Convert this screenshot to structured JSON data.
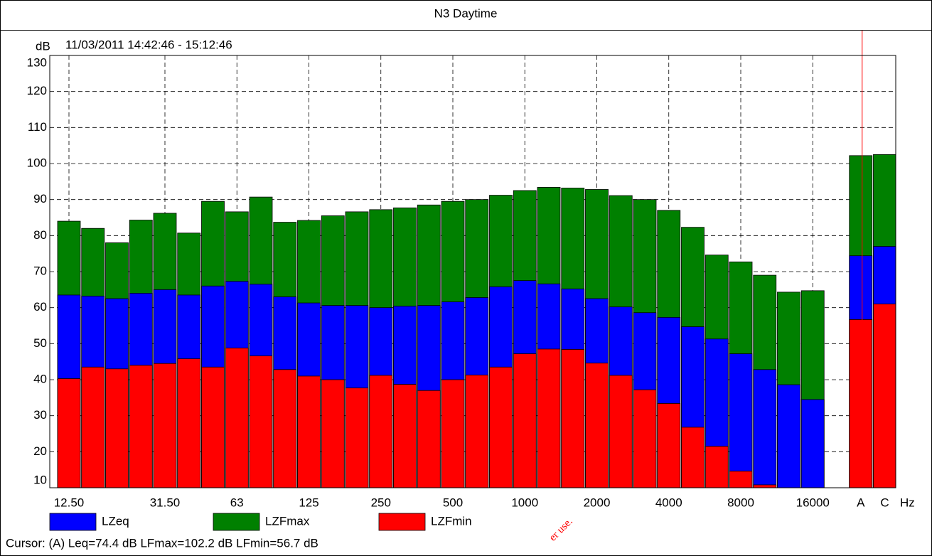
{
  "chart_data": {
    "type": "bar",
    "title": "N3 Daytime",
    "y_label": "dB",
    "subtitle": "11/03/2011 14:42:46 - 15:12:46",
    "x_unit": "Hz",
    "categories": [
      "12.50",
      null,
      null,
      null,
      "31.50",
      null,
      null,
      "63",
      null,
      null,
      "125",
      null,
      null,
      "250",
      null,
      null,
      "500",
      null,
      null,
      "1000",
      null,
      null,
      "2000",
      null,
      null,
      "4000",
      null,
      null,
      "8000",
      null,
      null,
      "16000",
      "A",
      "C"
    ],
    "series": [
      {
        "name": "LZeq",
        "color": "#0000ff",
        "values": [
          63.5,
          63.2,
          62.5,
          64,
          65,
          63.5,
          66,
          67.3,
          66.5,
          63,
          61.3,
          60.6,
          60.6,
          60,
          60.4,
          60.6,
          61.6,
          62.8,
          65.8,
          67.5,
          66.6,
          65.2,
          62.5,
          60.2,
          58.6,
          57.3,
          54.7,
          51.3,
          47.2,
          42.8,
          38.6,
          34.5,
          74.4,
          77
        ]
      },
      {
        "name": "LZFmax",
        "color": "#008000",
        "values": [
          84,
          82,
          78,
          84.3,
          86.2,
          80.7,
          89.5,
          86.6,
          90.7,
          83.7,
          84.2,
          85.5,
          86.6,
          87.2,
          87.7,
          88.5,
          89.5,
          90,
          91.2,
          92.5,
          93.4,
          93.2,
          92.8,
          91.1,
          90,
          87,
          82.3,
          74.6,
          72.7,
          69,
          64.3,
          64.7,
          102.2,
          102.5
        ]
      },
      {
        "name": "LZFmin",
        "color": "#ff0000",
        "values": [
          40.3,
          43.5,
          43,
          44,
          44.5,
          45.8,
          43.5,
          48.8,
          46.6,
          42.8,
          41,
          40,
          37.7,
          41.2,
          38.7,
          37,
          40,
          41.3,
          43.5,
          47.2,
          48.5,
          48.4,
          44.6,
          41.2,
          37.2,
          33.4,
          26.8,
          21.5,
          14.6,
          10.8,
          8,
          6,
          56.7,
          61
        ]
      }
    ],
    "ylim": [
      10,
      130
    ],
    "yticks": [
      10,
      20,
      30,
      40,
      50,
      60,
      70,
      80,
      90,
      100,
      110,
      120,
      130
    ],
    "grid": true,
    "cursor_category": "A",
    "cursor_text": "Cursor: (A)  Leq=74.4 dB  LFmax=102.2 dB  LFmin=56.7 dB",
    "watermark": "er use."
  }
}
